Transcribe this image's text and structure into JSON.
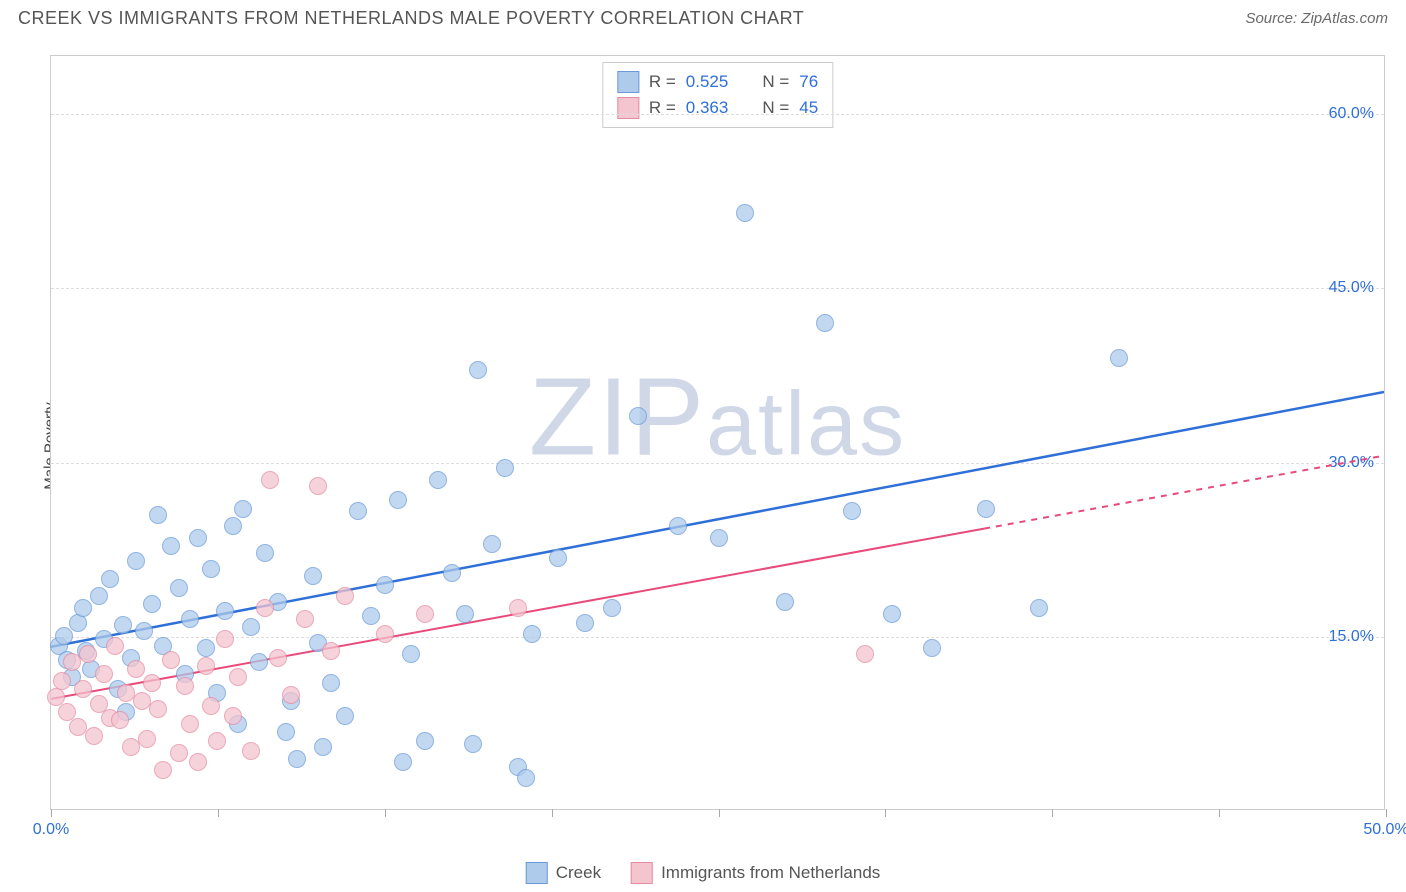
{
  "header": {
    "title": "CREEK VS IMMIGRANTS FROM NETHERLANDS MALE POVERTY CORRELATION CHART",
    "source": "Source: ZipAtlas.com"
  },
  "watermark": {
    "text_big1": "ZIP",
    "text_small": "atlas"
  },
  "y_axis": {
    "label": "Male Poverty"
  },
  "chart": {
    "type": "scatter",
    "background_color": "#ffffff",
    "grid_color": "#dddddd",
    "border_color": "#cccccc",
    "x_range": [
      0,
      50
    ],
    "y_range": [
      0,
      65
    ],
    "y_ticks": [
      {
        "value": 15.0,
        "label": "15.0%"
      },
      {
        "value": 30.0,
        "label": "30.0%"
      },
      {
        "value": 45.0,
        "label": "45.0%"
      },
      {
        "value": 60.0,
        "label": "60.0%"
      }
    ],
    "x_ticks": [
      {
        "value": 0.0,
        "label": "0.0%"
      },
      {
        "value": 6.25,
        "label": ""
      },
      {
        "value": 12.5,
        "label": ""
      },
      {
        "value": 18.75,
        "label": ""
      },
      {
        "value": 25.0,
        "label": ""
      },
      {
        "value": 31.25,
        "label": ""
      },
      {
        "value": 37.5,
        "label": ""
      },
      {
        "value": 43.75,
        "label": ""
      },
      {
        "value": 50.0,
        "label": "50.0%"
      }
    ],
    "series": [
      {
        "name": "Creek",
        "fill_color": "#aecbeb",
        "stroke_color": "#6a9bd8",
        "marker_radius": 9,
        "trend": {
          "x1": 0,
          "y1": 14.0,
          "x2": 50,
          "y2": 36.0,
          "color": "#2e6fd8",
          "width": 2.5,
          "dash_from": 50
        },
        "R": "0.525",
        "N": "76",
        "points": [
          [
            0.3,
            14.2
          ],
          [
            0.5,
            15.1
          ],
          [
            0.6,
            13.0
          ],
          [
            0.8,
            11.5
          ],
          [
            1.0,
            16.2
          ],
          [
            1.2,
            17.5
          ],
          [
            1.3,
            13.8
          ],
          [
            1.5,
            12.2
          ],
          [
            1.8,
            18.5
          ],
          [
            2.0,
            14.8
          ],
          [
            2.2,
            20.0
          ],
          [
            2.5,
            10.5
          ],
          [
            2.7,
            16.0
          ],
          [
            3.0,
            13.2
          ],
          [
            3.2,
            21.5
          ],
          [
            3.5,
            15.5
          ],
          [
            3.8,
            17.8
          ],
          [
            4.0,
            25.5
          ],
          [
            4.2,
            14.2
          ],
          [
            4.5,
            22.8
          ],
          [
            4.8,
            19.2
          ],
          [
            5.0,
            11.8
          ],
          [
            5.2,
            16.5
          ],
          [
            5.5,
            23.5
          ],
          [
            5.8,
            14.0
          ],
          [
            6.0,
            20.8
          ],
          [
            6.2,
            10.2
          ],
          [
            6.5,
            17.2
          ],
          [
            6.8,
            24.5
          ],
          [
            7.2,
            26.0
          ],
          [
            7.5,
            15.8
          ],
          [
            7.8,
            12.8
          ],
          [
            8.0,
            22.2
          ],
          [
            8.5,
            18.0
          ],
          [
            9.0,
            9.5
          ],
          [
            9.2,
            4.5
          ],
          [
            9.8,
            20.2
          ],
          [
            10.0,
            14.5
          ],
          [
            10.2,
            5.5
          ],
          [
            10.5,
            11.0
          ],
          [
            11.0,
            8.2
          ],
          [
            11.5,
            25.8
          ],
          [
            12.0,
            16.8
          ],
          [
            12.5,
            19.5
          ],
          [
            13.0,
            26.8
          ],
          [
            13.5,
            13.5
          ],
          [
            14.0,
            6.0
          ],
          [
            14.5,
            28.5
          ],
          [
            15.0,
            20.5
          ],
          [
            15.5,
            17.0
          ],
          [
            16.0,
            38.0
          ],
          [
            16.5,
            23.0
          ],
          [
            17.0,
            29.5
          ],
          [
            17.5,
            3.8
          ],
          [
            18.0,
            15.2
          ],
          [
            19.0,
            21.8
          ],
          [
            20.0,
            16.2
          ],
          [
            21.0,
            17.5
          ],
          [
            22.0,
            34.0
          ],
          [
            23.5,
            24.5
          ],
          [
            25.0,
            23.5
          ],
          [
            26.0,
            51.5
          ],
          [
            27.5,
            18.0
          ],
          [
            29.0,
            42.0
          ],
          [
            30.0,
            25.8
          ],
          [
            31.5,
            17.0
          ],
          [
            33.0,
            14.0
          ],
          [
            35.0,
            26.0
          ],
          [
            37.0,
            17.5
          ],
          [
            40.0,
            39.0
          ],
          [
            2.8,
            8.5
          ],
          [
            7.0,
            7.5
          ],
          [
            8.8,
            6.8
          ],
          [
            13.2,
            4.2
          ],
          [
            17.8,
            2.8
          ],
          [
            15.8,
            5.8
          ]
        ]
      },
      {
        "name": "Immigrants from Netherlands",
        "fill_color": "#f4c4cf",
        "stroke_color": "#e38da2",
        "marker_radius": 9,
        "trend": {
          "x1": 0,
          "y1": 9.5,
          "x2": 50,
          "y2": 30.5,
          "color": "#e84a7a",
          "width": 2,
          "dash_from": 35
        },
        "R": "0.363",
        "N": "45",
        "points": [
          [
            0.2,
            9.8
          ],
          [
            0.4,
            11.2
          ],
          [
            0.6,
            8.5
          ],
          [
            0.8,
            12.8
          ],
          [
            1.0,
            7.2
          ],
          [
            1.2,
            10.5
          ],
          [
            1.4,
            13.5
          ],
          [
            1.6,
            6.5
          ],
          [
            1.8,
            9.2
          ],
          [
            2.0,
            11.8
          ],
          [
            2.2,
            8.0
          ],
          [
            2.4,
            14.2
          ],
          [
            2.6,
            7.8
          ],
          [
            2.8,
            10.2
          ],
          [
            3.0,
            5.5
          ],
          [
            3.2,
            12.2
          ],
          [
            3.4,
            9.5
          ],
          [
            3.6,
            6.2
          ],
          [
            3.8,
            11.0
          ],
          [
            4.0,
            8.8
          ],
          [
            4.2,
            3.5
          ],
          [
            4.5,
            13.0
          ],
          [
            4.8,
            5.0
          ],
          [
            5.0,
            10.8
          ],
          [
            5.2,
            7.5
          ],
          [
            5.5,
            4.2
          ],
          [
            5.8,
            12.5
          ],
          [
            6.0,
            9.0
          ],
          [
            6.2,
            6.0
          ],
          [
            6.5,
            14.8
          ],
          [
            6.8,
            8.2
          ],
          [
            7.0,
            11.5
          ],
          [
            7.5,
            5.2
          ],
          [
            8.0,
            17.5
          ],
          [
            8.2,
            28.5
          ],
          [
            8.5,
            13.2
          ],
          [
            9.0,
            10.0
          ],
          [
            9.5,
            16.5
          ],
          [
            10.0,
            28.0
          ],
          [
            10.5,
            13.8
          ],
          [
            11.0,
            18.5
          ],
          [
            12.5,
            15.2
          ],
          [
            14.0,
            17.0
          ],
          [
            17.5,
            17.5
          ],
          [
            30.5,
            13.5
          ]
        ]
      }
    ]
  },
  "legend_bottom": [
    {
      "label": "Creek",
      "fill": "#aecbeb",
      "stroke": "#6a9bd8"
    },
    {
      "label": "Immigrants from Netherlands",
      "fill": "#f4c4cf",
      "stroke": "#e38da2"
    }
  ]
}
